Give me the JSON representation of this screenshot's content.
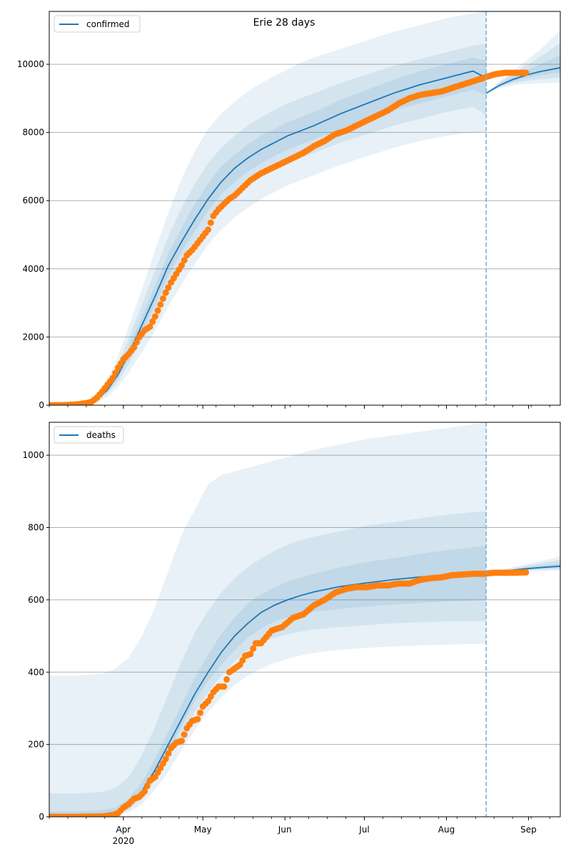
{
  "chart_data": [
    {
      "type": "line",
      "title": "Erie 28 days",
      "legend": {
        "label": "confirmed",
        "placement": "top-left"
      },
      "xlabel": "",
      "ylabel": "",
      "x_start_date": "2020-03-04",
      "x_end_date": "2020-09-13",
      "forecast_start_date": "2020-08-16",
      "ylim": [
        0,
        11550
      ],
      "yticks": [
        0,
        2000,
        4000,
        6000,
        8000,
        10000
      ],
      "ytick_labels": [
        "0",
        "2000",
        "4000",
        "6000",
        "8000",
        "10000"
      ],
      "grid": "horizontal",
      "model_days": [
        0,
        10,
        18,
        22,
        26,
        30,
        35,
        40,
        45,
        50,
        55,
        60,
        65,
        70,
        75,
        80,
        85,
        90,
        95,
        100,
        110,
        120,
        130,
        140,
        150,
        160,
        165
      ],
      "model_median": [
        0,
        20,
        150,
        450,
        900,
        1500,
        2350,
        3200,
        4100,
        4800,
        5450,
        6050,
        6550,
        6950,
        7250,
        7500,
        7700,
        7900,
        8050,
        8200,
        8550,
        8850,
        9150,
        9400,
        9600,
        9800,
        9600
      ],
      "band_outer_low": [
        0,
        10,
        80,
        250,
        550,
        950,
        1550,
        2200,
        2900,
        3550,
        4150,
        4700,
        5150,
        5500,
        5800,
        6050,
        6250,
        6450,
        6600,
        6750,
        7050,
        7300,
        7550,
        7750,
        7900,
        8000,
        8000
      ],
      "band_outer_high": [
        0,
        40,
        260,
        750,
        1450,
        2300,
        3400,
        4550,
        5650,
        6650,
        7450,
        8100,
        8550,
        8900,
        9200,
        9450,
        9650,
        9850,
        10050,
        10200,
        10450,
        10700,
        10950,
        11150,
        11350,
        11500,
        11550
      ],
      "band_mid_low": [
        0,
        15,
        110,
        350,
        700,
        1200,
        1900,
        2650,
        3450,
        4150,
        4750,
        5300,
        5800,
        6150,
        6450,
        6700,
        6900,
        7100,
        7250,
        7400,
        7700,
        7950,
        8200,
        8400,
        8600,
        8750,
        8500
      ],
      "band_mid_high": [
        0,
        30,
        210,
        600,
        1200,
        1950,
        2950,
        3950,
        4950,
        5800,
        6500,
        7100,
        7550,
        7900,
        8200,
        8450,
        8650,
        8850,
        9000,
        9150,
        9450,
        9700,
        9950,
        10150,
        10350,
        10550,
        10600
      ],
      "band_inner_low": [
        0,
        18,
        130,
        400,
        800,
        1350,
        2150,
        2950,
        3800,
        4500,
        5100,
        5700,
        6200,
        6550,
        6850,
        7100,
        7300,
        7500,
        7650,
        7800,
        8100,
        8400,
        8650,
        8850,
        9050,
        9250,
        9100
      ],
      "band_inner_high": [
        0,
        25,
        180,
        520,
        1050,
        1700,
        2600,
        3500,
        4450,
        5200,
        5900,
        6500,
        7000,
        7350,
        7650,
        7900,
        8100,
        8300,
        8450,
        8600,
        8950,
        9250,
        9550,
        9800,
        10000,
        10200,
        10100
      ],
      "forecast_days": [
        165,
        170,
        175,
        180,
        185,
        193
      ],
      "forecast_median": [
        9150,
        9380,
        9550,
        9680,
        9780,
        9900
      ],
      "forecast_low": [
        9150,
        9300,
        9380,
        9420,
        9440,
        9460
      ],
      "forecast_high": [
        9150,
        9500,
        9800,
        10100,
        10400,
        11000
      ],
      "observed_days": [
        0,
        5,
        10,
        14,
        16,
        18,
        20,
        22,
        24,
        26,
        28,
        30,
        32,
        34,
        36,
        38,
        40,
        42,
        44,
        46,
        48,
        50,
        52,
        54,
        56,
        58,
        60,
        62,
        64,
        66,
        68,
        70,
        72,
        74,
        76,
        78,
        80,
        84,
        88,
        92,
        96,
        100,
        104,
        108,
        112,
        116,
        120,
        124,
        128,
        132,
        136,
        140,
        144,
        148,
        152,
        156,
        160,
        164,
        168,
        172,
        176,
        180
      ],
      "observed_values": [
        0,
        0,
        20,
        60,
        100,
        220,
        400,
        600,
        800,
        1100,
        1350,
        1500,
        1700,
        2000,
        2200,
        2300,
        2600,
        2950,
        3300,
        3600,
        3850,
        4100,
        4400,
        4550,
        4750,
        4950,
        5150,
        5550,
        5750,
        5900,
        6050,
        6150,
        6300,
        6450,
        6600,
        6700,
        6800,
        6950,
        7100,
        7250,
        7400,
        7600,
        7750,
        7950,
        8050,
        8200,
        8350,
        8500,
        8650,
        8850,
        9000,
        9100,
        9150,
        9200,
        9300,
        9400,
        9500,
        9600,
        9700,
        9750,
        9750,
        9750
      ]
    },
    {
      "type": "line",
      "title": "",
      "legend": {
        "label": "deaths",
        "placement": "top-left"
      },
      "xlabel": "",
      "ylabel": "",
      "x_start_date": "2020-03-04",
      "x_end_date": "2020-09-13",
      "forecast_start_date": "2020-08-16",
      "ylim": [
        0,
        1091
      ],
      "yticks": [
        0,
        200,
        400,
        600,
        800,
        1000
      ],
      "ytick_labels": [
        "0",
        "200",
        "400",
        "600",
        "800",
        "1000"
      ],
      "xtick_labels": [
        "Apr\n2020",
        "May",
        "Jun",
        "Jul",
        "Aug",
        "Sep"
      ],
      "xtick_dates": [
        "2020-04-01",
        "2020-05-01",
        "2020-06-01",
        "2020-07-01",
        "2020-08-01",
        "2020-09-01"
      ],
      "grid": "horizontal",
      "model_days": [
        0,
        10,
        20,
        25,
        30,
        35,
        40,
        45,
        50,
        55,
        60,
        65,
        70,
        75,
        80,
        85,
        90,
        95,
        100,
        110,
        120,
        130,
        140,
        150,
        160,
        165
      ],
      "model_median": [
        0,
        0,
        2,
        10,
        30,
        70,
        130,
        200,
        270,
        340,
        400,
        455,
        500,
        535,
        565,
        585,
        600,
        612,
        622,
        637,
        647,
        656,
        663,
        668,
        672,
        674
      ],
      "band_outer_low": [
        0,
        0,
        0,
        3,
        12,
        35,
        75,
        125,
        185,
        240,
        290,
        330,
        365,
        390,
        410,
        425,
        437,
        446,
        453,
        462,
        467,
        471,
        474,
        476,
        478,
        478
      ],
      "band_outer_high": [
        390,
        390,
        395,
        410,
        440,
        500,
        580,
        680,
        780,
        850,
        920,
        945,
        955,
        965,
        975,
        985,
        995,
        1005,
        1015,
        1030,
        1045,
        1055,
        1065,
        1075,
        1085,
        1091
      ],
      "band_mid_low": [
        0,
        0,
        1,
        6,
        20,
        50,
        100,
        160,
        225,
        290,
        345,
        390,
        430,
        460,
        480,
        495,
        505,
        512,
        518,
        525,
        530,
        535,
        538,
        540,
        541,
        541
      ],
      "band_mid_high": [
        65,
        65,
        68,
        80,
        110,
        170,
        250,
        340,
        430,
        510,
        570,
        620,
        660,
        690,
        715,
        735,
        752,
        765,
        775,
        790,
        805,
        815,
        825,
        835,
        843,
        845
      ],
      "band_inner_low": [
        0,
        0,
        1,
        8,
        25,
        60,
        115,
        180,
        250,
        320,
        375,
        420,
        460,
        495,
        520,
        540,
        552,
        560,
        567,
        575,
        582,
        587,
        591,
        595,
        598,
        600
      ],
      "band_inner_high": [
        15,
        15,
        18,
        25,
        50,
        95,
        160,
        235,
        310,
        385,
        450,
        505,
        550,
        590,
        615,
        635,
        650,
        662,
        672,
        690,
        705,
        715,
        727,
        737,
        745,
        750
      ],
      "forecast_days": [
        165,
        170,
        175,
        180,
        185,
        193
      ],
      "forecast_median": [
        674,
        678,
        682,
        686,
        689,
        693
      ],
      "forecast_low": [
        674,
        676,
        678,
        679,
        680,
        681
      ],
      "forecast_high": [
        674,
        682,
        690,
        698,
        706,
        720
      ],
      "observed_days": [
        0,
        10,
        20,
        24,
        26,
        28,
        30,
        32,
        34,
        36,
        38,
        40,
        42,
        44,
        46,
        48,
        50,
        52,
        54,
        56,
        58,
        60,
        62,
        64,
        66,
        68,
        70,
        72,
        74,
        76,
        78,
        80,
        84,
        88,
        92,
        96,
        100,
        104,
        108,
        112,
        116,
        120,
        124,
        128,
        132,
        136,
        140,
        144,
        148,
        152,
        156,
        160,
        164,
        168,
        172,
        176,
        180
      ],
      "observed_values": [
        0,
        0,
        1,
        5,
        10,
        25,
        35,
        50,
        55,
        70,
        100,
        110,
        135,
        160,
        190,
        205,
        210,
        245,
        265,
        270,
        305,
        320,
        345,
        360,
        360,
        400,
        410,
        420,
        445,
        450,
        480,
        480,
        515,
        525,
        550,
        560,
        585,
        600,
        620,
        630,
        635,
        635,
        640,
        640,
        645,
        645,
        655,
        660,
        662,
        668,
        670,
        672,
        672,
        675,
        675,
        675,
        676
      ]
    }
  ],
  "colors": {
    "model_line": "#1f77b4",
    "observed": "#ff7f0e",
    "band": "#1f77b4",
    "grid": "#b0b0b0",
    "forecast_marker": "#7fb2d8"
  }
}
